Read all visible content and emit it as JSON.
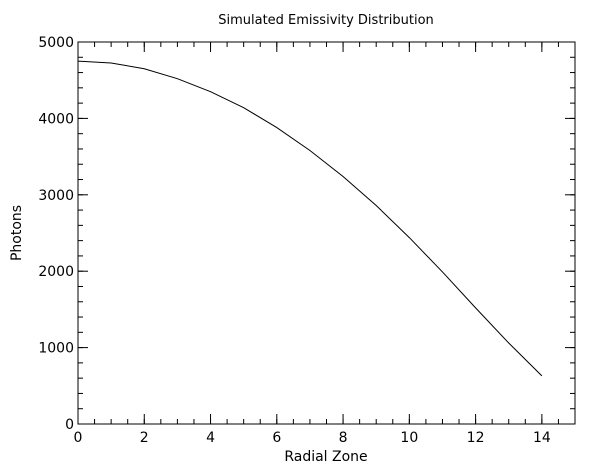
{
  "chart_data": {
    "type": "line",
    "title": "Simulated Emissivity Distribution",
    "xlabel": "Radial Zone",
    "ylabel": "Photons",
    "xlim": [
      0,
      15
    ],
    "ylim": [
      0,
      5000
    ],
    "x_ticks": [
      0,
      2,
      4,
      6,
      8,
      10,
      12,
      14
    ],
    "x_tick_labels": [
      "0",
      "2",
      "4",
      "6",
      "8",
      "10",
      "12",
      "14"
    ],
    "y_ticks": [
      0,
      1000,
      2000,
      3000,
      4000,
      5000
    ],
    "y_tick_labels": [
      "0",
      "1000",
      "2000",
      "3000",
      "4000",
      "5000"
    ],
    "x_minor_step": 0.5,
    "y_minor_step": 200,
    "grid": false,
    "series": [
      {
        "x": [
          0,
          1,
          2,
          3,
          4,
          5,
          6,
          7,
          8,
          9,
          10,
          11,
          12,
          13,
          14
        ],
        "values": [
          4750,
          4725,
          4650,
          4520,
          4350,
          4140,
          3880,
          3580,
          3240,
          2860,
          2440,
          1990,
          1520,
          1060,
          630
        ]
      }
    ],
    "colors": {
      "line": "#000000",
      "axis": "#000000",
      "background": "#ffffff"
    }
  }
}
